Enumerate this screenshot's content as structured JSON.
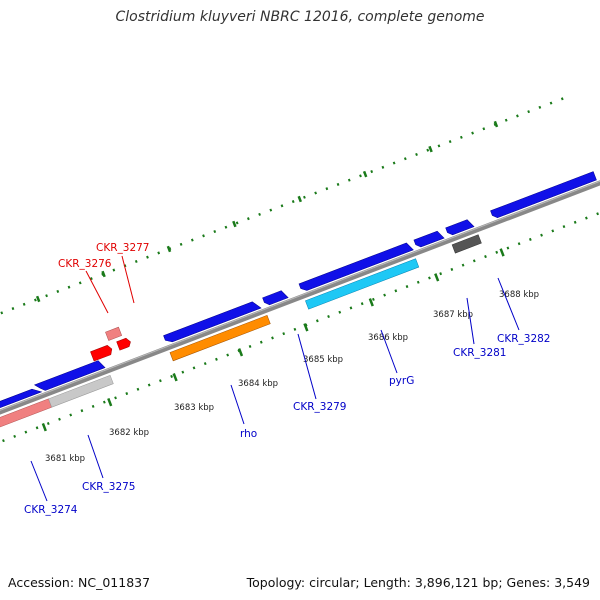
{
  "title": "Clostridium kluyveri NBRC 12016, complete genome",
  "footer": {
    "accession": "Accession: NC_011837",
    "summary": "Topology: circular; Length: 3,896,121 bp; Genes: 3,549"
  },
  "colors": {
    "forward_gene": "#1010e8",
    "pink_gene": "#f08080",
    "grey_gene": "#c0c0c0",
    "red_gene": "#ff0000",
    "orange_gene": "#ff8c00",
    "cyan_gene": "#1ec8f5",
    "dark_grey_gene": "#555555",
    "tick": "#1a7a1a",
    "backbone": "#888888"
  },
  "kbp_labels": [
    "3681 kbp",
    "3682 kbp",
    "3683 kbp",
    "3684 kbp",
    "3685 kbp",
    "3686 kbp",
    "3687 kbp",
    "3688 kbp"
  ],
  "gene_labels": {
    "ckr3277": "CKR_3277",
    "ckr3276": "CKR_3276",
    "rho": "rho",
    "ckr3279": "CKR_3279",
    "pyrg": "pyrG",
    "ckr3281": "CKR_3281",
    "ckr3282": "CKR_3282",
    "ckr3275": "CKR_3275",
    "ckr3274": "CKR_3274"
  }
}
